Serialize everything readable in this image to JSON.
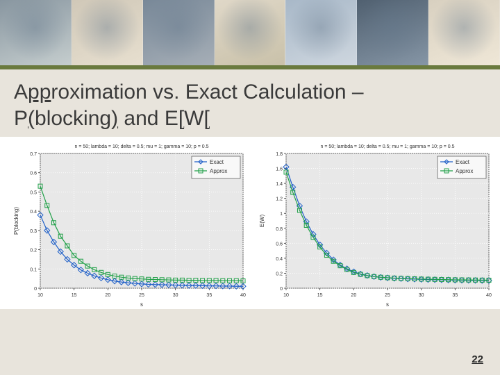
{
  "slide": {
    "title_line1_pre": "A",
    "title_line1_u1": "pp",
    "title_line1_mid1": "roximation vs. Exact Calculation – ",
    "title_line2_pre": "P",
    "title_line2_u1": "(",
    "title_line2_mid": "blockin",
    "title_line2_u2": "g)",
    "title_line2_post": " and E",
    "title_line2_u3": "[",
    "title_line2_post2": "W",
    "title_line2_u4": "[",
    "page_number": "22",
    "background_color": "#e8e4dc"
  },
  "chart_left": {
    "type": "line",
    "title": "n = 50; lambda = 10; delta = 0.5; mu = 1; gamma = 10; p = 0.5",
    "title_fontsize": 7,
    "xlabel": "s",
    "ylabel": "P(blocking)",
    "label_fontsize": 8,
    "xlim": [
      10,
      40
    ],
    "ylim": [
      0,
      0.7
    ],
    "xticks": [
      10,
      15,
      20,
      25,
      30,
      35,
      40
    ],
    "yticks": [
      0,
      0.1,
      0.2,
      0.3,
      0.4,
      0.5,
      0.6,
      0.7
    ],
    "plot_bg": "#e8e8e8",
    "grid_color": "#ffffff",
    "tick_fontsize": 7,
    "legend": {
      "items": [
        "Exact",
        "Approx"
      ],
      "position": "upper-right"
    },
    "series": [
      {
        "name": "Exact",
        "color": "#2060c8",
        "marker": "diamond",
        "marker_size": 4,
        "line_width": 1.2,
        "x": [
          10,
          11,
          12,
          13,
          14,
          15,
          16,
          17,
          18,
          19,
          20,
          21,
          22,
          23,
          24,
          25,
          26,
          27,
          28,
          29,
          30,
          31,
          32,
          33,
          34,
          35,
          36,
          37,
          38,
          39,
          40
        ],
        "y": [
          0.38,
          0.3,
          0.24,
          0.19,
          0.15,
          0.12,
          0.095,
          0.078,
          0.064,
          0.053,
          0.044,
          0.037,
          0.032,
          0.028,
          0.025,
          0.022,
          0.02,
          0.019,
          0.018,
          0.017,
          0.016,
          0.015,
          0.014,
          0.014,
          0.013,
          0.012,
          0.012,
          0.011,
          0.011,
          0.01,
          0.01
        ]
      },
      {
        "name": "Approx",
        "color": "#20a048",
        "marker": "square",
        "marker_size": 4,
        "line_width": 1.2,
        "x": [
          10,
          11,
          12,
          13,
          14,
          15,
          16,
          17,
          18,
          19,
          20,
          21,
          22,
          23,
          24,
          25,
          26,
          27,
          28,
          29,
          30,
          31,
          32,
          33,
          34,
          35,
          36,
          37,
          38,
          39,
          40
        ],
        "y": [
          0.53,
          0.43,
          0.34,
          0.27,
          0.22,
          0.17,
          0.14,
          0.115,
          0.096,
          0.082,
          0.071,
          0.063,
          0.057,
          0.053,
          0.05,
          0.048,
          0.046,
          0.045,
          0.044,
          0.043,
          0.042,
          0.042,
          0.041,
          0.041,
          0.04,
          0.04,
          0.04,
          0.039,
          0.039,
          0.039,
          0.038
        ]
      }
    ]
  },
  "chart_right": {
    "type": "line",
    "title": "n = 50; lambda = 10; delta = 0.5; mu = 1; gamma = 10; p = 0.5",
    "title_fontsize": 7,
    "xlabel": "s",
    "ylabel": "E(W)",
    "label_fontsize": 8,
    "xlim": [
      10,
      40
    ],
    "ylim": [
      0,
      1.8
    ],
    "xticks": [
      10,
      15,
      20,
      25,
      30,
      35,
      40
    ],
    "yticks": [
      0,
      0.2,
      0.4,
      0.6,
      0.8,
      1.0,
      1.2,
      1.4,
      1.6,
      1.8
    ],
    "plot_bg": "#e8e8e8",
    "grid_color": "#ffffff",
    "tick_fontsize": 7,
    "legend": {
      "items": [
        "Exact",
        "Approx"
      ],
      "position": "upper-right"
    },
    "series": [
      {
        "name": "Exact",
        "color": "#2060c8",
        "marker": "diamond",
        "marker_size": 4,
        "line_width": 1.2,
        "x": [
          10,
          11,
          12,
          13,
          14,
          15,
          16,
          17,
          18,
          19,
          20,
          21,
          22,
          23,
          24,
          25,
          26,
          27,
          28,
          29,
          30,
          31,
          32,
          33,
          34,
          35,
          36,
          37,
          38,
          39,
          40
        ],
        "y": [
          1.62,
          1.35,
          1.1,
          0.89,
          0.72,
          0.58,
          0.47,
          0.38,
          0.31,
          0.26,
          0.22,
          0.19,
          0.17,
          0.155,
          0.145,
          0.138,
          0.132,
          0.128,
          0.124,
          0.121,
          0.118,
          0.116,
          0.114,
          0.112,
          0.11,
          0.108,
          0.106,
          0.105,
          0.104,
          0.103,
          0.102
        ]
      },
      {
        "name": "Approx",
        "color": "#20a048",
        "marker": "square",
        "marker_size": 4,
        "line_width": 1.2,
        "x": [
          10,
          11,
          12,
          13,
          14,
          15,
          16,
          17,
          18,
          19,
          20,
          21,
          22,
          23,
          24,
          25,
          26,
          27,
          28,
          29,
          30,
          31,
          32,
          33,
          34,
          35,
          36,
          37,
          38,
          39,
          40
        ],
        "y": [
          1.55,
          1.28,
          1.04,
          0.84,
          0.68,
          0.55,
          0.44,
          0.36,
          0.3,
          0.25,
          0.21,
          0.185,
          0.168,
          0.155,
          0.146,
          0.14,
          0.135,
          0.131,
          0.128,
          0.125,
          0.122,
          0.12,
          0.118,
          0.116,
          0.114,
          0.112,
          0.111,
          0.11,
          0.109,
          0.108,
          0.107
        ]
      }
    ]
  }
}
